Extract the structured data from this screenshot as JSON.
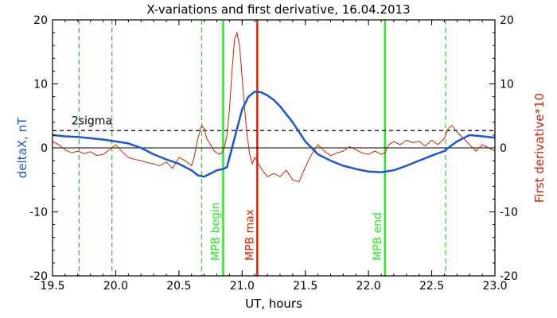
{
  "chart_data": {
    "type": "line",
    "title": "X-variations and first derivative, 16.04.2013",
    "xlabel": "UT, hours",
    "ylabel_left": "deltaX, nT",
    "ylabel_right": "First derivative*10",
    "xlim": [
      19.5,
      23.0
    ],
    "ylim_left": [
      -20,
      20
    ],
    "ylim_right": [
      -20,
      20
    ],
    "x_ticks": [
      "19.5",
      "20.0",
      "20.5",
      "21.0",
      "21.5",
      "22.0",
      "22.5",
      "23.0"
    ],
    "x_tick_values": [
      19.5,
      20.0,
      20.5,
      21.0,
      21.5,
      22.0,
      22.5,
      23.0
    ],
    "y_ticks": [
      "-20",
      "-10",
      "0",
      "10",
      "20"
    ],
    "y_tick_values": [
      -20,
      -10,
      0,
      10,
      20
    ],
    "grid": false,
    "colors": {
      "deltaX": "#1a56d6",
      "derivative": "#cc2200",
      "mpb_lines": "#22ee22",
      "max_line": "#dd2200",
      "dashed_green": "#22cc22",
      "sigma_line": "#000000",
      "zero_line": "#000000"
    },
    "series": [
      {
        "name": "deltaX, nT",
        "axis": "left",
        "x": [
          19.5,
          19.6,
          19.7,
          19.8,
          19.9,
          20.0,
          20.1,
          20.2,
          20.3,
          20.4,
          20.5,
          20.55,
          20.6,
          20.65,
          20.7,
          20.75,
          20.8,
          20.85,
          20.88,
          20.92,
          20.96,
          21.0,
          21.05,
          21.1,
          21.15,
          21.2,
          21.25,
          21.3,
          21.4,
          21.5,
          21.6,
          21.7,
          21.8,
          21.9,
          22.0,
          22.1,
          22.2,
          22.3,
          22.4,
          22.5,
          22.6,
          22.65,
          22.7,
          22.8,
          22.9,
          23.0
        ],
        "values": [
          2.0,
          1.8,
          1.7,
          1.5,
          1.3,
          1.0,
          0.7,
          0.0,
          -1.0,
          -1.8,
          -2.5,
          -3.0,
          -3.5,
          -4.3,
          -4.5,
          -4.0,
          -3.5,
          -3.3,
          -3.0,
          0.0,
          3.0,
          6.0,
          8.0,
          8.8,
          8.7,
          8.2,
          7.5,
          6.5,
          4.0,
          1.0,
          -1.0,
          -2.0,
          -2.8,
          -3.3,
          -3.7,
          -3.8,
          -3.5,
          -2.8,
          -2.0,
          -1.2,
          -0.5,
          0.3,
          1.0,
          2.0,
          1.8,
          1.6
        ]
      },
      {
        "name": "First derivative*10",
        "axis": "right",
        "x": [
          19.5,
          19.55,
          19.6,
          19.65,
          19.7,
          19.75,
          19.8,
          19.85,
          19.9,
          19.95,
          20.0,
          20.05,
          20.1,
          20.15,
          20.2,
          20.25,
          20.3,
          20.35,
          20.4,
          20.45,
          20.5,
          20.55,
          20.6,
          20.62,
          20.65,
          20.68,
          20.7,
          20.72,
          20.75,
          20.78,
          20.8,
          20.83,
          20.86,
          20.88,
          20.9,
          20.92,
          20.94,
          20.96,
          20.98,
          21.0,
          21.02,
          21.04,
          21.06,
          21.08,
          21.1,
          21.13,
          21.16,
          21.2,
          21.25,
          21.3,
          21.35,
          21.4,
          21.45,
          21.5,
          21.55,
          21.6,
          21.65,
          21.7,
          21.75,
          21.8,
          21.85,
          21.9,
          21.95,
          22.0,
          22.05,
          22.1,
          22.13,
          22.16,
          22.2,
          22.25,
          22.3,
          22.35,
          22.4,
          22.45,
          22.5,
          22.55,
          22.6,
          22.63,
          22.66,
          22.7,
          22.75,
          22.8,
          22.85,
          22.9,
          22.95,
          23.0
        ],
        "values": [
          1.0,
          0.5,
          -0.3,
          -0.8,
          -0.5,
          -0.9,
          -0.6,
          -1.2,
          -1.0,
          -0.3,
          0.5,
          -0.6,
          -1.5,
          -1.8,
          -2.0,
          -2.3,
          -2.5,
          -2.8,
          -2.2,
          -3.2,
          -1.5,
          -2.0,
          -2.8,
          -1.5,
          1.5,
          3.5,
          3.0,
          1.5,
          0.5,
          -0.5,
          -0.8,
          -1.0,
          0.0,
          2.0,
          6.0,
          12.0,
          17.0,
          18.0,
          16.0,
          11.0,
          6.0,
          2.0,
          -1.0,
          -2.5,
          -1.5,
          -2.5,
          -3.5,
          -4.5,
          -4.0,
          -4.5,
          -3.5,
          -5.0,
          -5.3,
          -3.0,
          -1.0,
          0.5,
          -0.5,
          -1.2,
          -0.8,
          -0.5,
          0.2,
          -0.3,
          -0.8,
          -1.0,
          -0.5,
          -1.0,
          -0.8,
          0.5,
          1.0,
          0.5,
          1.2,
          0.8,
          1.0,
          0.3,
          1.2,
          0.5,
          1.5,
          3.0,
          3.5,
          2.5,
          1.5,
          0.5,
          -0.5,
          0.5,
          0.0,
          -0.5
        ]
      }
    ],
    "reference_lines": {
      "zero": 0,
      "sigma_level": 2.7,
      "sigma_label": "2sigma"
    },
    "vertical_lines": {
      "dashed": [
        19.71,
        19.97,
        20.68,
        22.61
      ],
      "mpb_begin": {
        "x": 20.85,
        "label": "MPB begin"
      },
      "mpb_max": {
        "x": 21.12,
        "label": "MPB max"
      },
      "mpb_end": {
        "x": 22.13,
        "label": "MPB end"
      }
    }
  }
}
